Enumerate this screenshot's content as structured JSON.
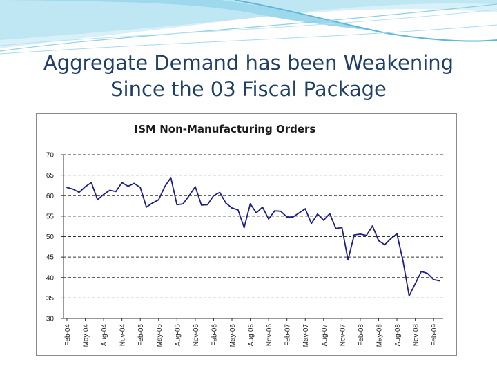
{
  "slide": {
    "title_line1": "Aggregate Demand has been Weakening",
    "title_line2": "Since the 03 Fiscal Package"
  },
  "colors": {
    "title": "#1f3f66",
    "line": "#1c1f8a",
    "banner_light": "#d8f0f8",
    "banner_mid": "#9ed8ec",
    "banner_dark": "#5fb8d8"
  },
  "chart_data": {
    "type": "line",
    "title": "ISM Non-Manufacturing Orders",
    "xlabel": "",
    "ylabel": "",
    "ylim": [
      30,
      70
    ],
    "yticks": [
      30,
      35,
      40,
      45,
      50,
      55,
      60,
      65,
      70
    ],
    "grid": "horizontal dashed",
    "x_tick_labels": [
      "Feb-04",
      "May-04",
      "Aug-04",
      "Nov-04",
      "Feb-05",
      "May-05",
      "Aug-05",
      "Nov-05",
      "Feb-06",
      "May-06",
      "Aug-06",
      "Nov-06",
      "Feb-07",
      "May-07",
      "Aug-07",
      "Nov-07",
      "Feb-08",
      "May-08",
      "Aug-08",
      "Nov-08",
      "Feb-09"
    ],
    "series": [
      {
        "name": "ISM Non-Manufacturing Orders",
        "x": [
          "Feb-04",
          "Mar-04",
          "Apr-04",
          "May-04",
          "Jun-04",
          "Jul-04",
          "Aug-04",
          "Sep-04",
          "Oct-04",
          "Nov-04",
          "Dec-04",
          "Jan-05",
          "Feb-05",
          "Mar-05",
          "Apr-05",
          "May-05",
          "Jun-05",
          "Jul-05",
          "Aug-05",
          "Sep-05",
          "Oct-05",
          "Nov-05",
          "Dec-05",
          "Jan-06",
          "Feb-06",
          "Mar-06",
          "Apr-06",
          "May-06",
          "Jun-06",
          "Jul-06",
          "Aug-06",
          "Sep-06",
          "Oct-06",
          "Nov-06",
          "Dec-06",
          "Jan-07",
          "Feb-07",
          "Mar-07",
          "Apr-07",
          "May-07",
          "Jun-07",
          "Jul-07",
          "Aug-07",
          "Sep-07",
          "Oct-07",
          "Nov-07",
          "Dec-07",
          "Jan-08",
          "Feb-08",
          "Mar-08",
          "Apr-08",
          "May-08",
          "Jun-08",
          "Jul-08",
          "Aug-08",
          "Sep-08",
          "Oct-08",
          "Nov-08",
          "Dec-08",
          "Jan-09",
          "Feb-09",
          "Mar-09"
        ],
        "values": [
          62.0,
          61.6,
          60.8,
          62.2,
          63.2,
          59.0,
          60.3,
          61.3,
          61.0,
          63.2,
          62.3,
          63.0,
          62.0,
          57.2,
          58.2,
          59.0,
          62.2,
          64.4,
          57.8,
          58.0,
          60.0,
          62.2,
          57.7,
          57.8,
          60.0,
          60.8,
          58.2,
          57.0,
          56.5,
          52.2,
          58.0,
          55.8,
          57.2,
          54.3,
          56.3,
          56.2,
          54.8,
          54.8,
          55.8,
          56.8,
          53.2,
          55.5,
          54.0,
          55.6,
          52.0,
          52.2,
          44.3,
          50.4,
          50.6,
          50.3,
          52.6,
          49.0,
          48.0,
          49.5,
          50.7,
          44.0,
          35.5,
          38.5,
          41.5,
          41.0,
          39.5,
          39.2
        ]
      }
    ]
  }
}
